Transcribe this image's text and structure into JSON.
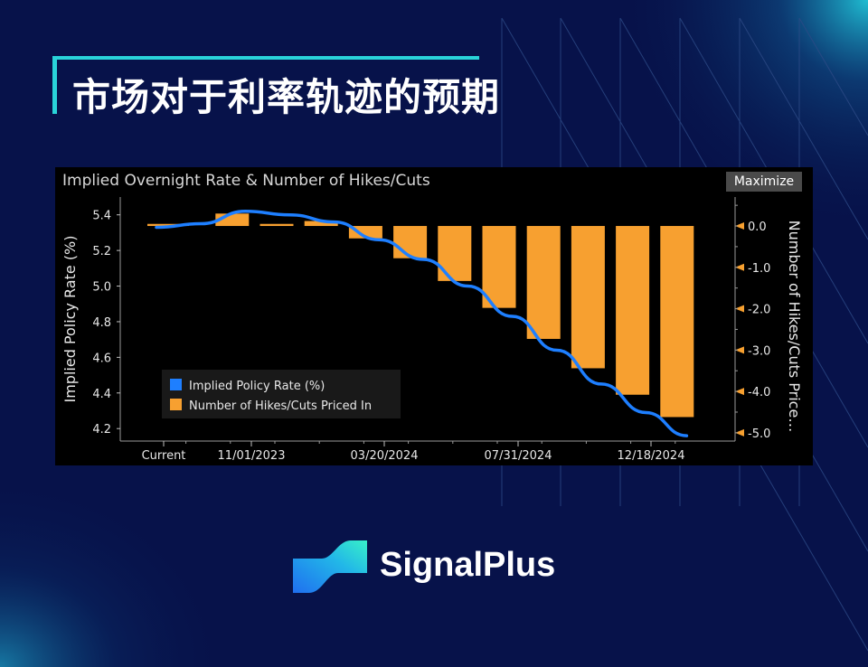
{
  "slide": {
    "title": "市场对于利率轨迹的预期",
    "brand_name": "SignalPlus",
    "accent_color": "#29d3d9",
    "background_color": "#07124a"
  },
  "panel": {
    "title": "Implied Overnight Rate & Number of Hikes/Cuts",
    "maximize_label": "Maximize"
  },
  "chart_data": {
    "type": "bar",
    "title": "Implied Overnight Rate & Number of Hikes/Cuts",
    "x_tick_labels": [
      "Current",
      "11/01/2023",
      "03/20/2024",
      "07/31/2024",
      "12/18/2024"
    ],
    "ylabel_left": "Implied Policy Rate (%)",
    "ylabel_right": "Number of Hikes/Cuts Price…",
    "ylim_left": [
      4.13,
      5.5
    ],
    "ylim_right": [
      -5.2,
      0.7
    ],
    "yticks_left": [
      "4.2",
      "4.4",
      "4.6",
      "4.8",
      "5.0",
      "5.2",
      "5.4"
    ],
    "yticks_right": [
      "0.0",
      "-1.0",
      "-2.0",
      "-3.0",
      "-4.0",
      "-5.0"
    ],
    "legend_position": "bottom-left",
    "grid": false,
    "series": [
      {
        "name": "Implied Policy Rate (%)",
        "kind": "line",
        "color": "#1e7fff",
        "axis": "left",
        "x": [
          0,
          1,
          2,
          3,
          4,
          5,
          6,
          7,
          8,
          9,
          10,
          11,
          12
        ],
        "values": [
          5.33,
          5.35,
          5.42,
          5.4,
          5.36,
          5.26,
          5.15,
          5.0,
          4.83,
          4.64,
          4.45,
          4.29,
          4.16
        ]
      },
      {
        "name": "Number of Hikes/Cuts Priced In",
        "kind": "bar",
        "color": "#f7a030",
        "axis": "right",
        "values": [
          0.05,
          0.3,
          0.05,
          0.12,
          -0.3,
          -0.78,
          -1.33,
          -1.98,
          -2.73,
          -3.44,
          -4.08,
          -4.62
        ]
      }
    ]
  },
  "legend": {
    "line_label": "Implied Policy Rate (%)",
    "bar_label": "Number of Hikes/Cuts Priced In"
  }
}
